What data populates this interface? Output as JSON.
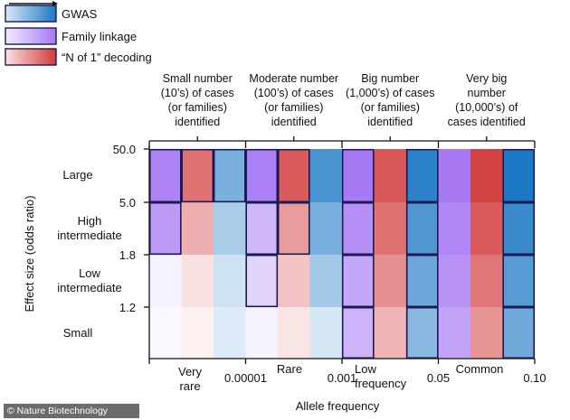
{
  "chart_data": {
    "type": "heatmap",
    "legend": [
      {
        "label": "GWAS",
        "gradient": [
          "#dbe9f7",
          "#1b78c4"
        ]
      },
      {
        "label": "Family linkage",
        "gradient": [
          "#f1ebff",
          "#a779f3"
        ]
      },
      {
        "label": "“N of 1” decoding",
        "gradient": [
          "#fbe2e2",
          "#d2393a"
        ]
      }
    ],
    "column_groups": [
      {
        "header": [
          "Small number",
          "(10’s) of cases",
          "(or families)",
          "identified"
        ]
      },
      {
        "header": [
          "Moderate number",
          "(100’s) of cases",
          "(or families)",
          "identified"
        ]
      },
      {
        "header": [
          "Big number",
          "(1,000’s) of cases",
          "(or families)",
          "identified"
        ]
      },
      {
        "header": [
          "Very big",
          "number",
          "(10,000’s) of",
          "cases identified"
        ]
      }
    ],
    "x_groups": [
      [
        "Very",
        "rare"
      ],
      [
        "Rare"
      ],
      [
        "Low",
        "frequency"
      ],
      [
        "Common"
      ]
    ],
    "x_ticks": [
      "0.00001",
      "0.001",
      "0.05",
      "0.10"
    ],
    "xlabel": "Allele frequency",
    "y_ticks": [
      "50.0",
      "5.0",
      "1.8",
      "1.2"
    ],
    "y_categories": [
      [
        "Large"
      ],
      [
        "High",
        "intermediate"
      ],
      [
        "Low",
        "intermediate"
      ],
      [
        "Small"
      ]
    ],
    "ylabel": "Effect size (odds ratio)",
    "methods": [
      "family_linkage",
      "n_of_1_decoding",
      "gwas"
    ],
    "colors": {
      "family_linkage": {
        "light": "#fcfbff",
        "dark": "#a779f3"
      },
      "n_of_1_decoding": {
        "light": "#fef8f8",
        "dark": "#d2393a"
      },
      "gwas": {
        "light": "#eef5fc",
        "dark": "#1b78c4"
      }
    },
    "intensity_note": "Cell values are relative detection power (0 = none, 1 = strongest), index order: [allele-frequency group][method][effect-size row from Large to Small]",
    "intensity": [
      [
        [
          0.92,
          0.75,
          0.08,
          0.02
        ],
        [
          0.7,
          0.38,
          0.12,
          0.04
        ],
        [
          0.55,
          0.32,
          0.15,
          0.08
        ]
      ],
      [
        [
          0.95,
          0.52,
          0.3,
          0.07
        ],
        [
          0.82,
          0.48,
          0.28,
          0.1
        ],
        [
          0.78,
          0.55,
          0.35,
          0.12
        ]
      ],
      [
        [
          1.0,
          0.82,
          0.65,
          0.55
        ],
        [
          0.85,
          0.7,
          0.55,
          0.35
        ],
        [
          0.92,
          0.75,
          0.62,
          0.48
        ]
      ],
      [
        [
          1.0,
          0.9,
          0.8,
          0.68
        ],
        [
          0.95,
          0.82,
          0.68,
          0.52
        ],
        [
          1.0,
          0.85,
          0.72,
          0.6
        ]
      ]
    ],
    "outlined_cells": [
      {
        "group": 0,
        "method": "family_linkage",
        "rows": [
          0,
          1
        ]
      },
      {
        "group": 0,
        "method": "n_of_1_decoding",
        "rows": [
          0
        ]
      },
      {
        "group": 0,
        "method": "gwas",
        "rows": [
          0
        ]
      },
      {
        "group": 1,
        "method": "family_linkage",
        "rows": [
          0,
          1,
          2
        ]
      },
      {
        "group": 1,
        "method": "n_of_1_decoding",
        "rows": [
          0,
          1
        ]
      },
      {
        "group": 2,
        "method": "family_linkage",
        "rows": [
          0,
          1,
          2,
          3
        ]
      },
      {
        "group": 2,
        "method": "gwas",
        "rows": [
          0,
          1,
          2,
          3
        ]
      },
      {
        "group": 3,
        "method": "gwas",
        "rows": [
          0,
          1,
          2,
          3
        ]
      }
    ]
  },
  "credit": "© Nature Biotechnology"
}
